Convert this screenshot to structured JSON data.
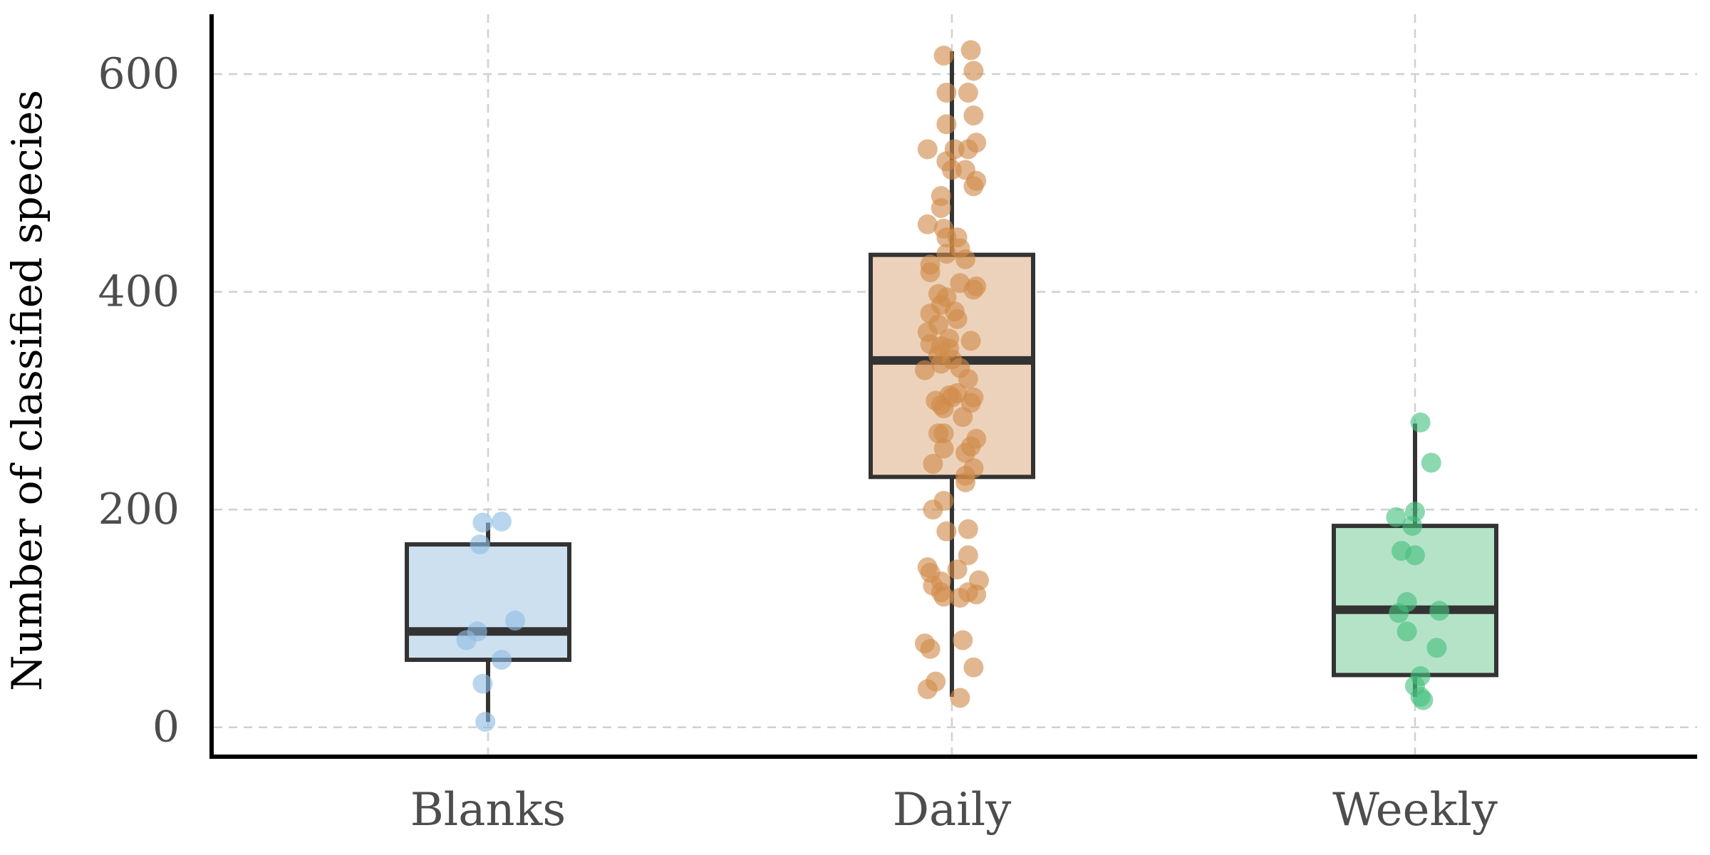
{
  "chart_data": {
    "type": "box",
    "xlabel": "",
    "ylabel": "Number of classified species",
    "ylim": [
      -27,
      655
    ],
    "yticks": [
      0,
      200,
      400,
      600
    ],
    "categories": [
      "Blanks",
      "Daily",
      "Weekly"
    ],
    "grid": true,
    "legend": "none",
    "groups": [
      {
        "name": "Blanks",
        "color": "#8fbde3",
        "fill": "#cce0f0",
        "box": {
          "min": 5,
          "q1": 62,
          "median": 88,
          "q3": 168,
          "max": 188
        },
        "points": [
          [
            -0.02,
            188
          ],
          [
            0.05,
            189
          ],
          [
            -0.03,
            168
          ],
          [
            0.1,
            98
          ],
          [
            -0.04,
            88
          ],
          [
            -0.08,
            80
          ],
          [
            0.05,
            62
          ],
          [
            -0.02,
            40
          ],
          [
            -0.01,
            5
          ]
        ]
      },
      {
        "name": "Daily",
        "color": "#d08a4a",
        "fill": "#edd2bb",
        "box": {
          "min": 28,
          "q1": 230,
          "median": 337,
          "q3": 434,
          "max": 621
        },
        "points": [
          [
            0.07,
            622
          ],
          [
            -0.03,
            617
          ],
          [
            0.08,
            603
          ],
          [
            -0.02,
            583
          ],
          [
            0.06,
            583
          ],
          [
            0.08,
            562
          ],
          [
            -0.02,
            554
          ],
          [
            0.09,
            537
          ],
          [
            -0.09,
            531
          ],
          [
            0.01,
            531
          ],
          [
            0.06,
            531
          ],
          [
            -0.02,
            520
          ],
          [
            0.05,
            512
          ],
          [
            0.09,
            502
          ],
          [
            0.0,
            512
          ],
          [
            0.08,
            497
          ],
          [
            -0.04,
            488
          ],
          [
            -0.04,
            477
          ],
          [
            -0.09,
            462
          ],
          [
            -0.03,
            458
          ],
          [
            -0.02,
            450
          ],
          [
            0.02,
            450
          ],
          [
            0.03,
            440
          ],
          [
            -0.02,
            435
          ],
          [
            -0.08,
            425
          ],
          [
            0.05,
            430
          ],
          [
            -0.08,
            418
          ],
          [
            0.09,
            405
          ],
          [
            0.03,
            408
          ],
          [
            0.08,
            402
          ],
          [
            -0.05,
            398
          ],
          [
            -0.02,
            395
          ],
          [
            -0.04,
            388
          ],
          [
            0.01,
            382
          ],
          [
            -0.08,
            380
          ],
          [
            0.02,
            375
          ],
          [
            -0.05,
            370
          ],
          [
            -0.09,
            363
          ],
          [
            -0.01,
            357
          ],
          [
            0.07,
            355
          ],
          [
            -0.08,
            352
          ],
          [
            -0.04,
            350
          ],
          [
            -0.01,
            348
          ],
          [
            -0.05,
            342
          ],
          [
            0.0,
            338
          ],
          [
            -0.04,
            334
          ],
          [
            -0.1,
            328
          ],
          [
            0.03,
            330
          ],
          [
            0.06,
            320
          ],
          [
            -0.06,
            300
          ],
          [
            0.08,
            303
          ],
          [
            -0.04,
            296
          ],
          [
            -0.03,
            293
          ],
          [
            -0.01,
            305
          ],
          [
            0.02,
            307
          ],
          [
            0.0,
            303
          ],
          [
            0.07,
            298
          ],
          [
            0.04,
            285
          ],
          [
            -0.05,
            270
          ],
          [
            -0.03,
            270
          ],
          [
            0.09,
            265
          ],
          [
            0.07,
            258
          ],
          [
            0.05,
            252
          ],
          [
            -0.03,
            256
          ],
          [
            0.08,
            238
          ],
          [
            -0.07,
            242
          ],
          [
            0.05,
            231
          ],
          [
            0.05,
            225
          ],
          [
            -0.03,
            208
          ],
          [
            -0.07,
            200
          ],
          [
            0.06,
            182
          ],
          [
            -0.02,
            180
          ],
          [
            0.06,
            158
          ],
          [
            -0.09,
            147
          ],
          [
            0.02,
            145
          ],
          [
            -0.08,
            142
          ],
          [
            -0.04,
            134
          ],
          [
            -0.07,
            130
          ],
          [
            -0.04,
            124
          ],
          [
            0.06,
            124
          ],
          [
            0.1,
            135
          ],
          [
            0.03,
            119
          ],
          [
            0.09,
            122
          ],
          [
            -0.03,
            120
          ],
          [
            -0.1,
            77
          ],
          [
            0.04,
            80
          ],
          [
            -0.08,
            72
          ],
          [
            0.08,
            55
          ],
          [
            -0.06,
            42
          ],
          [
            -0.09,
            35
          ],
          [
            0.03,
            27
          ]
        ]
      },
      {
        "name": "Weekly",
        "color": "#45c07e",
        "fill": "#b5e3c8",
        "box": {
          "min": 28,
          "q1": 48,
          "median": 108,
          "q3": 185,
          "max": 279
        },
        "points": [
          [
            0.02,
            280
          ],
          [
            0.06,
            243
          ],
          [
            0.0,
            198
          ],
          [
            -0.07,
            193
          ],
          [
            -0.01,
            185
          ],
          [
            -0.05,
            162
          ],
          [
            0.0,
            158
          ],
          [
            -0.03,
            115
          ],
          [
            -0.06,
            105
          ],
          [
            0.09,
            107
          ],
          [
            -0.03,
            88
          ],
          [
            0.08,
            73
          ],
          [
            0.02,
            47
          ],
          [
            0.0,
            38
          ],
          [
            0.02,
            28
          ],
          [
            0.03,
            25
          ]
        ]
      }
    ]
  }
}
